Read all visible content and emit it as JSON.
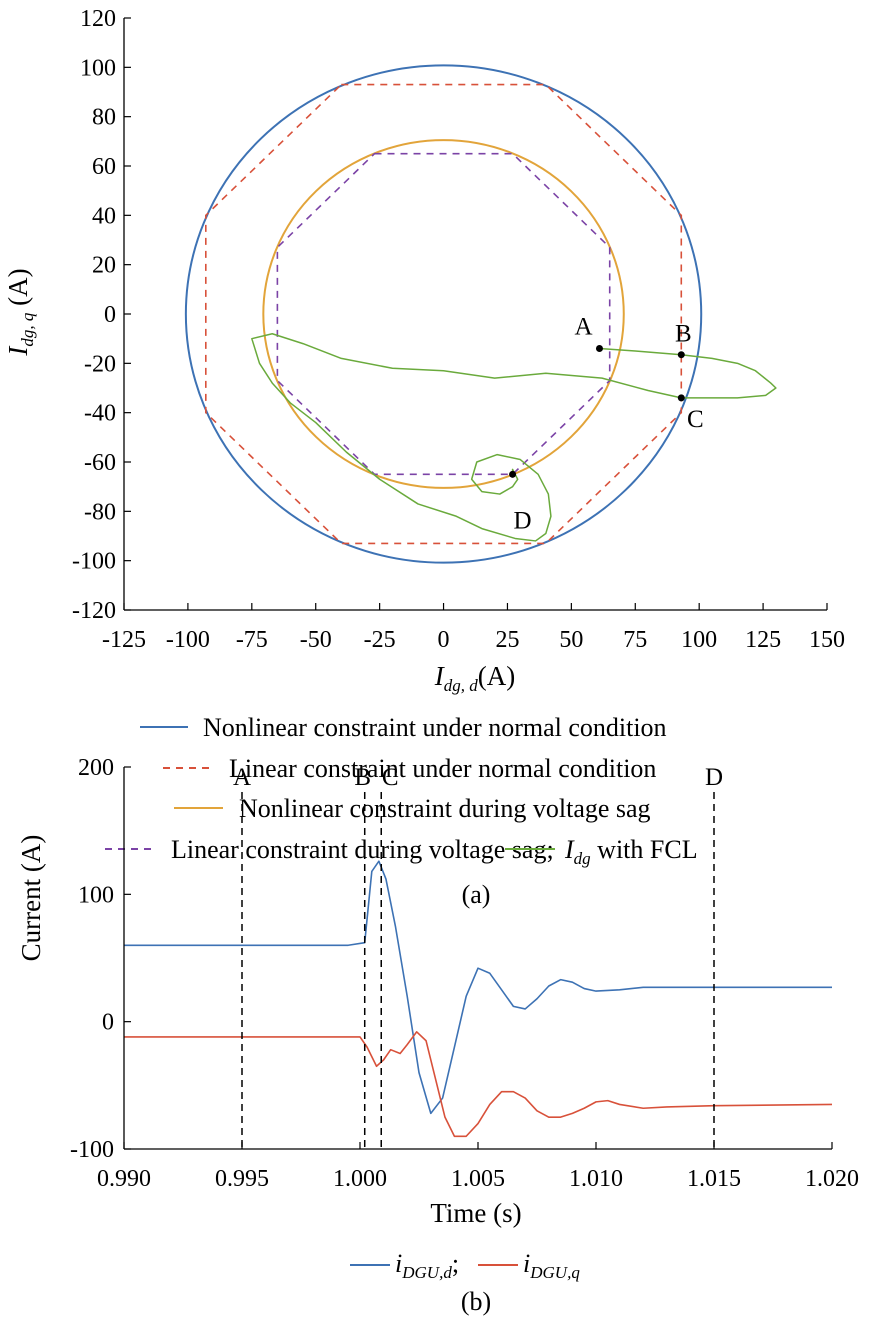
{
  "colors": {
    "blue": "#3d72b4",
    "red": "#d8513a",
    "orange": "#e2a43a",
    "purple": "#7b43a6",
    "green": "#6aaa3c",
    "black": "#000000"
  },
  "chart_data": [
    {
      "type": "line",
      "caption": "(a)",
      "xlabel": "I_dg,d (A)",
      "ylabel": "I_dg,q (A)",
      "xlim": [
        -125,
        150
      ],
      "ylim": [
        -120,
        120
      ],
      "xticks": [
        "-125",
        "-100",
        "-75",
        "-50",
        "-25",
        "0",
        "25",
        "50",
        "75",
        "100",
        "125",
        "150"
      ],
      "yticks": [
        "120",
        "100",
        "80",
        "60",
        "40",
        "20",
        "0",
        "-20",
        "-40",
        "-60",
        "-80",
        "-100",
        "-120"
      ],
      "grid": false,
      "legend_position": "below",
      "series": [
        {
          "name": "Nonlinear constraint under normal condition",
          "style": "solid",
          "color": "#3d72b4",
          "shape": "circle",
          "radius": 100.8
        },
        {
          "name": "Linear constraint under normal condition",
          "style": "dashed",
          "color": "#d8513a",
          "shape": "octagon",
          "vertices": [
            [
              -40,
              93
            ],
            [
              40,
              93
            ],
            [
              93,
              40
            ],
            [
              93,
              -40
            ],
            [
              40,
              -93
            ],
            [
              -40,
              -93
            ],
            [
              -93,
              -40
            ],
            [
              -93,
              40
            ]
          ]
        },
        {
          "name": "Nonlinear constraint during voltage sag",
          "style": "solid",
          "color": "#e2a43a",
          "shape": "circle",
          "radius": 70.5
        },
        {
          "name": "Linear constraint during voltage sag;",
          "style": "dashed",
          "color": "#7b43a6",
          "shape": "octagon",
          "vertices": [
            [
              -27,
              65
            ],
            [
              27,
              65
            ],
            [
              65,
              27
            ],
            [
              65,
              -27
            ],
            [
              27,
              -65
            ],
            [
              -27,
              -65
            ],
            [
              -65,
              -27
            ],
            [
              -65,
              27
            ]
          ]
        },
        {
          "name": "I_dg with FCL",
          "style": "solid",
          "color": "#6aaa3c",
          "shape": "trajectory",
          "points": [
            [
              61,
              -14
            ],
            [
              75,
              -15
            ],
            [
              93,
              -16.5
            ],
            [
              105,
              -18
            ],
            [
              115,
              -20
            ],
            [
              122,
              -23
            ],
            [
              128,
              -28
            ],
            [
              130,
              -30
            ],
            [
              126,
              -33
            ],
            [
              115,
              -34
            ],
            [
              104,
              -34
            ],
            [
              93,
              -34
            ],
            [
              80,
              -31
            ],
            [
              62,
              -26
            ],
            [
              40,
              -24
            ],
            [
              20,
              -26
            ],
            [
              0,
              -23
            ],
            [
              -20,
              -22
            ],
            [
              -40,
              -18
            ],
            [
              -55,
              -12
            ],
            [
              -67,
              -8
            ],
            [
              -75,
              -10
            ],
            [
              -72,
              -20
            ],
            [
              -67,
              -28
            ],
            [
              -60,
              -36
            ],
            [
              -50,
              -44
            ],
            [
              -38,
              -56
            ],
            [
              -25,
              -67
            ],
            [
              -10,
              -77
            ],
            [
              5,
              -82
            ],
            [
              15,
              -87
            ],
            [
              28,
              -91
            ],
            [
              36,
              -92
            ],
            [
              40,
              -89
            ],
            [
              42,
              -82
            ],
            [
              41,
              -73
            ],
            [
              37,
              -65
            ],
            [
              30,
              -59
            ],
            [
              21,
              -57
            ],
            [
              13,
              -60
            ],
            [
              11,
              -67
            ],
            [
              15,
              -72
            ],
            [
              22,
              -73
            ],
            [
              27,
              -70
            ],
            [
              29,
              -67
            ],
            [
              27,
              -63
            ],
            [
              27,
              -65
            ]
          ]
        }
      ],
      "point_labels": [
        {
          "label": "A",
          "x": 61,
          "y": -14
        },
        {
          "label": "B",
          "x": 93,
          "y": -16.5
        },
        {
          "label": "C",
          "x": 93,
          "y": -34
        },
        {
          "label": "D",
          "x": 27,
          "y": -65
        }
      ]
    },
    {
      "type": "line",
      "caption": "(b)",
      "xlabel": "Time (s)",
      "ylabel": "Current (A)",
      "xlim": [
        0.99,
        1.02
      ],
      "ylim": [
        -100,
        200
      ],
      "xticks": [
        "0.990",
        "0.995",
        "1.000",
        "1.005",
        "1.010",
        "1.015",
        "1.020"
      ],
      "yticks": [
        "200",
        "100",
        "0",
        "-100"
      ],
      "grid": false,
      "legend_position": "below",
      "series": [
        {
          "name": "i_DGU,d;",
          "color": "#3d72b4",
          "x": [
            0.99,
            0.9995,
            1.0002,
            1.0005,
            1.0008,
            1.0011,
            1.0015,
            1.002,
            1.0025,
            1.003,
            1.0035,
            1.004,
            1.0045,
            1.005,
            1.0055,
            1.006,
            1.0065,
            1.007,
            1.0075,
            1.008,
            1.0085,
            1.009,
            1.0095,
            1.01,
            1.011,
            1.012,
            1.013,
            1.015,
            1.02
          ],
          "y": [
            60,
            60,
            62,
            118,
            126,
            112,
            75,
            20,
            -40,
            -72,
            -60,
            -20,
            20,
            42,
            38,
            25,
            12,
            10,
            18,
            28,
            33,
            31,
            26,
            24,
            25,
            27,
            27,
            27,
            27
          ]
        },
        {
          "name": "i_DGU,q",
          "color": "#d8513a",
          "x": [
            0.99,
            1.0,
            1.0003,
            1.0007,
            1.001,
            1.0013,
            1.0017,
            1.002,
            1.0024,
            1.0028,
            1.0032,
            1.0036,
            1.004,
            1.0045,
            1.005,
            1.0055,
            1.006,
            1.0065,
            1.007,
            1.0075,
            1.008,
            1.0085,
            1.009,
            1.0095,
            1.01,
            1.0105,
            1.011,
            1.012,
            1.013,
            1.015,
            1.02
          ],
          "y": [
            -12,
            -12,
            -20,
            -35,
            -30,
            -22,
            -25,
            -18,
            -8,
            -15,
            -45,
            -75,
            -90,
            -90,
            -80,
            -65,
            -55,
            -55,
            -60,
            -70,
            -75,
            -75,
            -72,
            -68,
            -63,
            -62,
            -65,
            -68,
            -67,
            -66,
            -65
          ]
        }
      ],
      "markers": [
        {
          "label": "A",
          "x": 0.995
        },
        {
          "label": "B",
          "x": 1.0002
        },
        {
          "label": "C",
          "x": 1.0009
        },
        {
          "label": "D",
          "x": 1.015
        }
      ]
    }
  ]
}
